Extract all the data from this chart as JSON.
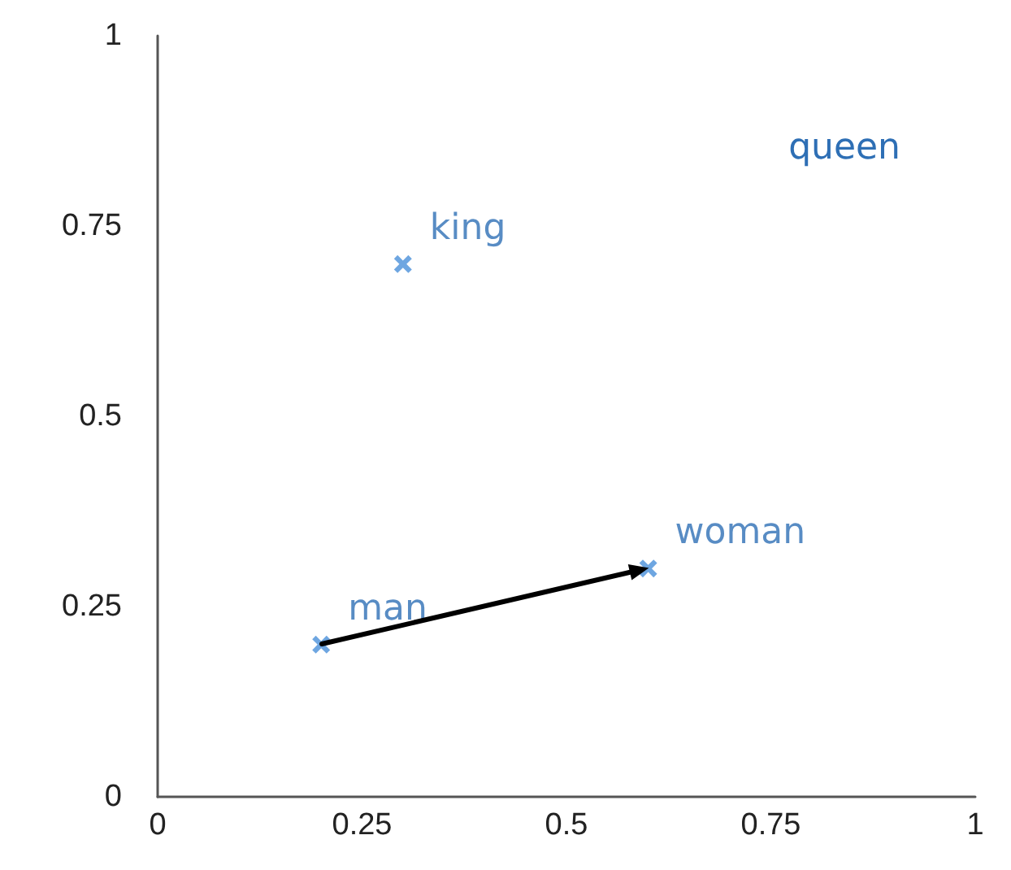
{
  "chart_data": {
    "type": "scatter",
    "series": [
      {
        "type": "scatter",
        "color": "#4a90d9",
        "x": [
          0.3,
          0.2,
          0.6
        ],
        "values": [
          0.7,
          0.2,
          0.3
        ],
        "value_labels": [
          "king",
          "man",
          "woman"
        ],
        "marker": "cross"
      }
    ],
    "annotations": [
      "queen"
    ],
    "xlim": [
      0,
      1
    ],
    "ylim": [
      0,
      1
    ],
    "xticks": [
      0,
      0.25,
      0.5,
      0.75,
      1
    ],
    "yticks": [
      0,
      0.25,
      0.5,
      0.75,
      1
    ],
    "grid": false
  }
}
